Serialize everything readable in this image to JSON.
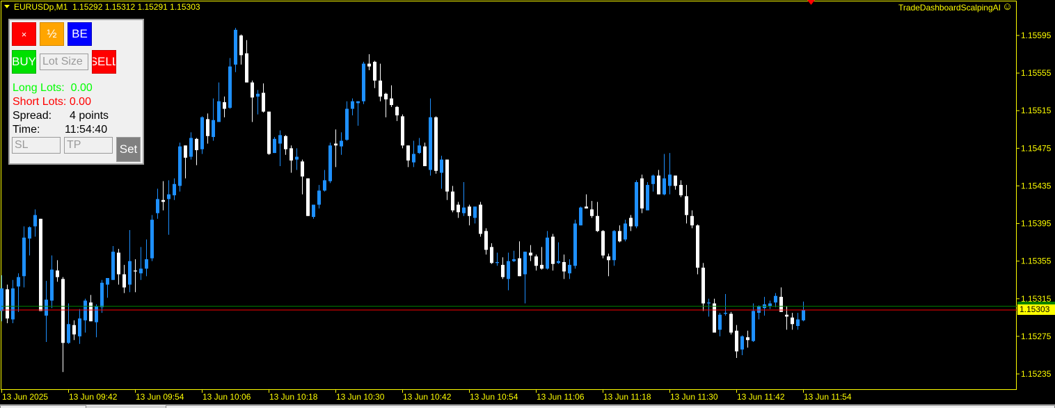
{
  "header": {
    "symbol": "EURUSDp,M1",
    "ohlc_text": "1.15292 1.15312 1.15291 1.15303"
  },
  "indicator": {
    "name": "TradeDashboardScalpingAI",
    "icon": "smiley-icon"
  },
  "panel": {
    "close_label": "×",
    "half_label": "½",
    "be_label": "BE",
    "buy_label": "BUY",
    "sell_label": "SELL",
    "lot_placeholder": "Lot Size",
    "long_lots_label": "Long Lots:",
    "long_lots_value": "0.00",
    "short_lots_label": "Short Lots:",
    "short_lots_value": "0.00",
    "spread_label": "Spread:",
    "spread_value": "4 points",
    "time_label": "Time:",
    "time_value": "11:54:40",
    "sl_placeholder": "SL",
    "tp_placeholder": "TP",
    "set_label": "Set"
  },
  "colors": {
    "bull": "#1e90ff",
    "bear": "#ffffff",
    "axis": "#ffff00",
    "bid_line": "#ff0000",
    "ask_line": "#008000",
    "background": "#000000"
  },
  "chart_data": {
    "type": "candlestick",
    "symbol": "EURUSDp",
    "timeframe": "M1",
    "first_time": "13 Jun 09:30",
    "last_time": "13 Jun 11:54",
    "ylim": [
      1.15225,
      1.1561
    ],
    "y_ticks": [
      "1.15595",
      "1.15555",
      "1.15515",
      "1.15475",
      "1.15435",
      "1.15395",
      "1.15355",
      "1.15315",
      "1.15275",
      "1.15235"
    ],
    "x_ticks": [
      "13 Jun 2025",
      "13 Jun 09:42",
      "13 Jun 09:54",
      "13 Jun 10:06",
      "13 Jun 10:18",
      "13 Jun 10:30",
      "13 Jun 10:42",
      "13 Jun 10:54",
      "13 Jun 11:06",
      "13 Jun 11:18",
      "13 Jun 11:30",
      "13 Jun 11:42",
      "13 Jun 11:54"
    ],
    "bid": 1.15303,
    "bid_label": "1.15303",
    "ask": 1.15307,
    "ohlc": [
      [
        1.15302,
        1.1534,
        1.15291,
        1.15326
      ],
      [
        1.15325,
        1.1533,
        1.15289,
        1.15294
      ],
      [
        1.15293,
        1.15335,
        1.15289,
        1.15326
      ],
      [
        1.15328,
        1.15342,
        1.15301,
        1.15338
      ],
      [
        1.15339,
        1.15392,
        1.15327,
        1.1538
      ],
      [
        1.15379,
        1.15392,
        1.15361,
        1.15391
      ],
      [
        1.15392,
        1.1541,
        1.15381,
        1.15404
      ],
      [
        1.154,
        1.154,
        1.15302,
        1.15302
      ],
      [
        1.15297,
        1.15334,
        1.15269,
        1.15314
      ],
      [
        1.15313,
        1.15361,
        1.15305,
        1.15346
      ],
      [
        1.15345,
        1.15356,
        1.15333,
        1.15338
      ],
      [
        1.15336,
        1.15338,
        1.15237,
        1.15268
      ],
      [
        1.15268,
        1.1531,
        1.15267,
        1.15288
      ],
      [
        1.15287,
        1.15292,
        1.15271,
        1.15277
      ],
      [
        1.15275,
        1.15304,
        1.15267,
        1.15294
      ],
      [
        1.15292,
        1.15315,
        1.15279,
        1.15313
      ],
      [
        1.15311,
        1.15319,
        1.15291,
        1.15291
      ],
      [
        1.1529,
        1.15309,
        1.15274,
        1.15307
      ],
      [
        1.15306,
        1.15335,
        1.153,
        1.15332
      ],
      [
        1.1533,
        1.15337,
        1.15316,
        1.15337
      ],
      [
        1.15335,
        1.15371,
        1.15335,
        1.15365
      ],
      [
        1.15364,
        1.15368,
        1.1533,
        1.15341
      ],
      [
        1.15341,
        1.15351,
        1.15321,
        1.15327
      ],
      [
        1.1533,
        1.15388,
        1.15322,
        1.15355
      ],
      [
        1.15345,
        1.15357,
        1.15322,
        1.15344
      ],
      [
        1.15342,
        1.1537,
        1.15335,
        1.15347
      ],
      [
        1.15347,
        1.15378,
        1.15339,
        1.15357
      ],
      [
        1.15358,
        1.15404,
        1.15355,
        1.15399
      ],
      [
        1.15406,
        1.15432,
        1.154,
        1.15421
      ],
      [
        1.1542,
        1.1544,
        1.15409,
        1.15418
      ],
      [
        1.15421,
        1.15441,
        1.15383,
        1.15426
      ],
      [
        1.15425,
        1.15443,
        1.1542,
        1.15437
      ],
      [
        1.15435,
        1.15481,
        1.15429,
        1.15477
      ],
      [
        1.15478,
        1.15478,
        1.15443,
        1.15465
      ],
      [
        1.15466,
        1.15492,
        1.15463,
        1.15486
      ],
      [
        1.15485,
        1.15486,
        1.15457,
        1.15473
      ],
      [
        1.15474,
        1.15509,
        1.15469,
        1.15508
      ],
      [
        1.15506,
        1.15512,
        1.1548,
        1.15488
      ],
      [
        1.15487,
        1.15528,
        1.15483,
        1.15505
      ],
      [
        1.15503,
        1.15545,
        1.15503,
        1.15525
      ],
      [
        1.15524,
        1.1553,
        1.15508,
        1.15517
      ],
      [
        1.15518,
        1.15571,
        1.15517,
        1.15562
      ],
      [
        1.15564,
        1.15603,
        1.15556,
        1.15601
      ],
      [
        1.15595,
        1.15596,
        1.15564,
        1.15574
      ],
      [
        1.15576,
        1.1559,
        1.15545,
        1.15545
      ],
      [
        1.15545,
        1.15547,
        1.15503,
        1.15529
      ],
      [
        1.1553,
        1.15537,
        1.15511,
        1.15533
      ],
      [
        1.15534,
        1.15544,
        1.15513,
        1.15514
      ],
      [
        1.15514,
        1.15514,
        1.15468,
        1.15469
      ],
      [
        1.1547,
        1.15487,
        1.1547,
        1.15485
      ],
      [
        1.1548,
        1.15494,
        1.15456,
        1.15489
      ],
      [
        1.15488,
        1.15489,
        1.15468,
        1.15474
      ],
      [
        1.15475,
        1.15478,
        1.15449,
        1.15462
      ],
      [
        1.15463,
        1.15475,
        1.15452,
        1.15466
      ],
      [
        1.15461,
        1.15463,
        1.15426,
        1.15445
      ],
      [
        1.15443,
        1.15443,
        1.15403,
        1.15403
      ],
      [
        1.15402,
        1.15415,
        1.154,
        1.15415
      ],
      [
        1.15415,
        1.15436,
        1.15411,
        1.1543
      ],
      [
        1.1543,
        1.15452,
        1.15429,
        1.15441
      ],
      [
        1.1544,
        1.15481,
        1.15438,
        1.15478
      ],
      [
        1.1548,
        1.15495,
        1.15455,
        1.15478
      ],
      [
        1.15477,
        1.15492,
        1.15468,
        1.15483
      ],
      [
        1.15484,
        1.15525,
        1.15483,
        1.15517
      ],
      [
        1.15517,
        1.15528,
        1.1551,
        1.15525
      ],
      [
        1.15523,
        1.15525,
        1.15499,
        1.15525
      ],
      [
        1.15525,
        1.15567,
        1.15522,
        1.15565
      ],
      [
        1.15565,
        1.15575,
        1.15558,
        1.15562
      ],
      [
        1.15567,
        1.15568,
        1.15539,
        1.15547
      ],
      [
        1.15547,
        1.15565,
        1.15525,
        1.1553
      ],
      [
        1.15533,
        1.15534,
        1.15508,
        1.15527
      ],
      [
        1.15528,
        1.15542,
        1.15519,
        1.15521
      ],
      [
        1.15519,
        1.1552,
        1.15504,
        1.1551
      ],
      [
        1.15509,
        1.15511,
        1.15475,
        1.15478
      ],
      [
        1.15478,
        1.15478,
        1.15455,
        1.15462
      ],
      [
        1.1546,
        1.15483,
        1.15455,
        1.15469
      ],
      [
        1.1547,
        1.15486,
        1.15469,
        1.15478
      ],
      [
        1.15477,
        1.15481,
        1.15456,
        1.15456
      ],
      [
        1.15452,
        1.15528,
        1.15446,
        1.15508
      ],
      [
        1.15508,
        1.15509,
        1.15448,
        1.15451
      ],
      [
        1.15449,
        1.15467,
        1.15432,
        1.15463
      ],
      [
        1.15463,
        1.15463,
        1.1542,
        1.15429
      ],
      [
        1.15429,
        1.15435,
        1.15407,
        1.15409
      ],
      [
        1.15415,
        1.15418,
        1.15401,
        1.15407
      ],
      [
        1.15406,
        1.15439,
        1.15403,
        1.15412
      ],
      [
        1.15413,
        1.15415,
        1.15393,
        1.15403
      ],
      [
        1.15401,
        1.15413,
        1.15395,
        1.15413
      ],
      [
        1.15415,
        1.15418,
        1.15381,
        1.15384
      ],
      [
        1.15387,
        1.1539,
        1.15362,
        1.15367
      ],
      [
        1.1537,
        1.15374,
        1.15352,
        1.15353
      ],
      [
        1.15353,
        1.15364,
        1.1535,
        1.15354
      ],
      [
        1.15351,
        1.15359,
        1.15336,
        1.15338
      ],
      [
        1.15336,
        1.15364,
        1.15324,
        1.15355
      ],
      [
        1.15355,
        1.15366,
        1.15354,
        1.15357
      ],
      [
        1.15358,
        1.15376,
        1.15339,
        1.15339
      ],
      [
        1.15341,
        1.15365,
        1.1531,
        1.15365
      ],
      [
        1.15364,
        1.15372,
        1.15355,
        1.15361
      ],
      [
        1.1536,
        1.15362,
        1.15345,
        1.1535
      ],
      [
        1.15351,
        1.1537,
        1.15346,
        1.15347
      ],
      [
        1.15347,
        1.15387,
        1.15346,
        1.1538
      ],
      [
        1.15381,
        1.15384,
        1.15345,
        1.15352
      ],
      [
        1.15353,
        1.15375,
        1.15352,
        1.15355
      ],
      [
        1.15354,
        1.15362,
        1.15336,
        1.15344
      ],
      [
        1.15342,
        1.15357,
        1.15336,
        1.15351
      ],
      [
        1.1535,
        1.15399,
        1.15347,
        1.15395
      ],
      [
        1.15393,
        1.15413,
        1.15393,
        1.15412
      ],
      [
        1.15413,
        1.15426,
        1.15411,
        1.15411
      ],
      [
        1.1541,
        1.15419,
        1.15401,
        1.15403
      ],
      [
        1.15403,
        1.15418,
        1.15386,
        1.15387
      ],
      [
        1.15387,
        1.15388,
        1.15358,
        1.15361
      ],
      [
        1.1536,
        1.15363,
        1.15339,
        1.15356
      ],
      [
        1.15356,
        1.15388,
        1.1535,
        1.15387
      ],
      [
        1.15387,
        1.15393,
        1.15375,
        1.15376
      ],
      [
        1.15378,
        1.15399,
        1.15376,
        1.15395
      ],
      [
        1.15401,
        1.15404,
        1.15387,
        1.15392
      ],
      [
        1.15392,
        1.15441,
        1.1539,
        1.15439
      ],
      [
        1.15443,
        1.15447,
        1.15406,
        1.15411
      ],
      [
        1.15409,
        1.15439,
        1.15409,
        1.15436
      ],
      [
        1.15437,
        1.15447,
        1.15429,
        1.15446
      ],
      [
        1.15446,
        1.15452,
        1.15426,
        1.15426
      ],
      [
        1.15426,
        1.15469,
        1.15425,
        1.15443
      ],
      [
        1.15435,
        1.1547,
        1.15426,
        1.15447
      ],
      [
        1.15446,
        1.15446,
        1.15431,
        1.15435
      ],
      [
        1.15436,
        1.15441,
        1.15423,
        1.15425
      ],
      [
        1.15424,
        1.15436,
        1.15395,
        1.15404
      ],
      [
        1.15403,
        1.15409,
        1.1539,
        1.15393
      ],
      [
        1.15393,
        1.15394,
        1.15341,
        1.15348
      ],
      [
        1.15348,
        1.15353,
        1.15302,
        1.1531
      ],
      [
        1.1531,
        1.15315,
        1.15296,
        1.15311
      ],
      [
        1.1531,
        1.15315,
        1.15279,
        1.15279
      ],
      [
        1.15282,
        1.153,
        1.15275,
        1.15298
      ],
      [
        1.15299,
        1.1532,
        1.15297,
        1.153
      ],
      [
        1.15299,
        1.15301,
        1.15277,
        1.15279
      ],
      [
        1.15281,
        1.15287,
        1.15252,
        1.15259
      ],
      [
        1.15261,
        1.15276,
        1.15255,
        1.15275
      ],
      [
        1.15274,
        1.15281,
        1.15263,
        1.15271
      ],
      [
        1.1527,
        1.1531,
        1.15269,
        1.15302
      ],
      [
        1.153,
        1.15308,
        1.15293,
        1.15307
      ],
      [
        1.15305,
        1.15317,
        1.15297,
        1.15309
      ],
      [
        1.15307,
        1.15313,
        1.15304,
        1.1531
      ],
      [
        1.15311,
        1.15321,
        1.15306,
        1.15318
      ],
      [
        1.15317,
        1.15327,
        1.15301,
        1.15301
      ],
      [
        1.15298,
        1.15307,
        1.15282,
        1.15296
      ],
      [
        1.15295,
        1.153,
        1.15282,
        1.15288
      ],
      [
        1.15286,
        1.153,
        1.15282,
        1.15293
      ],
      [
        1.15292,
        1.15312,
        1.15291,
        1.15303
      ]
    ]
  }
}
